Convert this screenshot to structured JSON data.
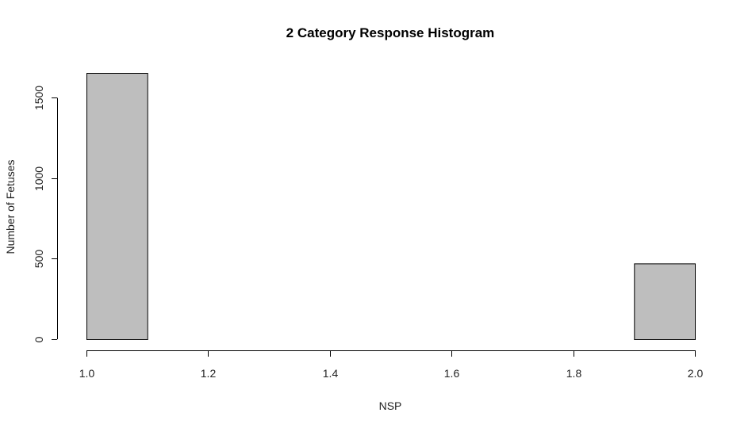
{
  "chart_data": {
    "type": "bar",
    "title": "2 Category Response Histogram",
    "xlabel": "NSP",
    "ylabel": "Number of Fetuses",
    "xlim": [
      1.0,
      2.0
    ],
    "ylim": [
      0,
      1655
    ],
    "x_ticks": [
      1.0,
      1.2,
      1.4,
      1.6,
      1.8,
      2.0
    ],
    "x_tick_labels": [
      "1.0",
      "1.2",
      "1.4",
      "1.6",
      "1.8",
      "2.0"
    ],
    "y_ticks": [
      0,
      500,
      1000,
      1500
    ],
    "y_tick_labels": [
      "0",
      "500",
      "1000",
      "1500"
    ],
    "bins": [
      {
        "start": 1.0,
        "end": 1.1,
        "count": 1655
      },
      {
        "start": 1.1,
        "end": 1.2,
        "count": 0
      },
      {
        "start": 1.2,
        "end": 1.3,
        "count": 0
      },
      {
        "start": 1.3,
        "end": 1.4,
        "count": 0
      },
      {
        "start": 1.4,
        "end": 1.5,
        "count": 0
      },
      {
        "start": 1.5,
        "end": 1.6,
        "count": 0
      },
      {
        "start": 1.6,
        "end": 1.7,
        "count": 0
      },
      {
        "start": 1.7,
        "end": 1.8,
        "count": 0
      },
      {
        "start": 1.8,
        "end": 1.9,
        "count": 0
      },
      {
        "start": 1.9,
        "end": 2.0,
        "count": 471
      }
    ],
    "bar_color": "#bebebe",
    "border_color": "#000000",
    "grid": false,
    "legend": "none"
  }
}
